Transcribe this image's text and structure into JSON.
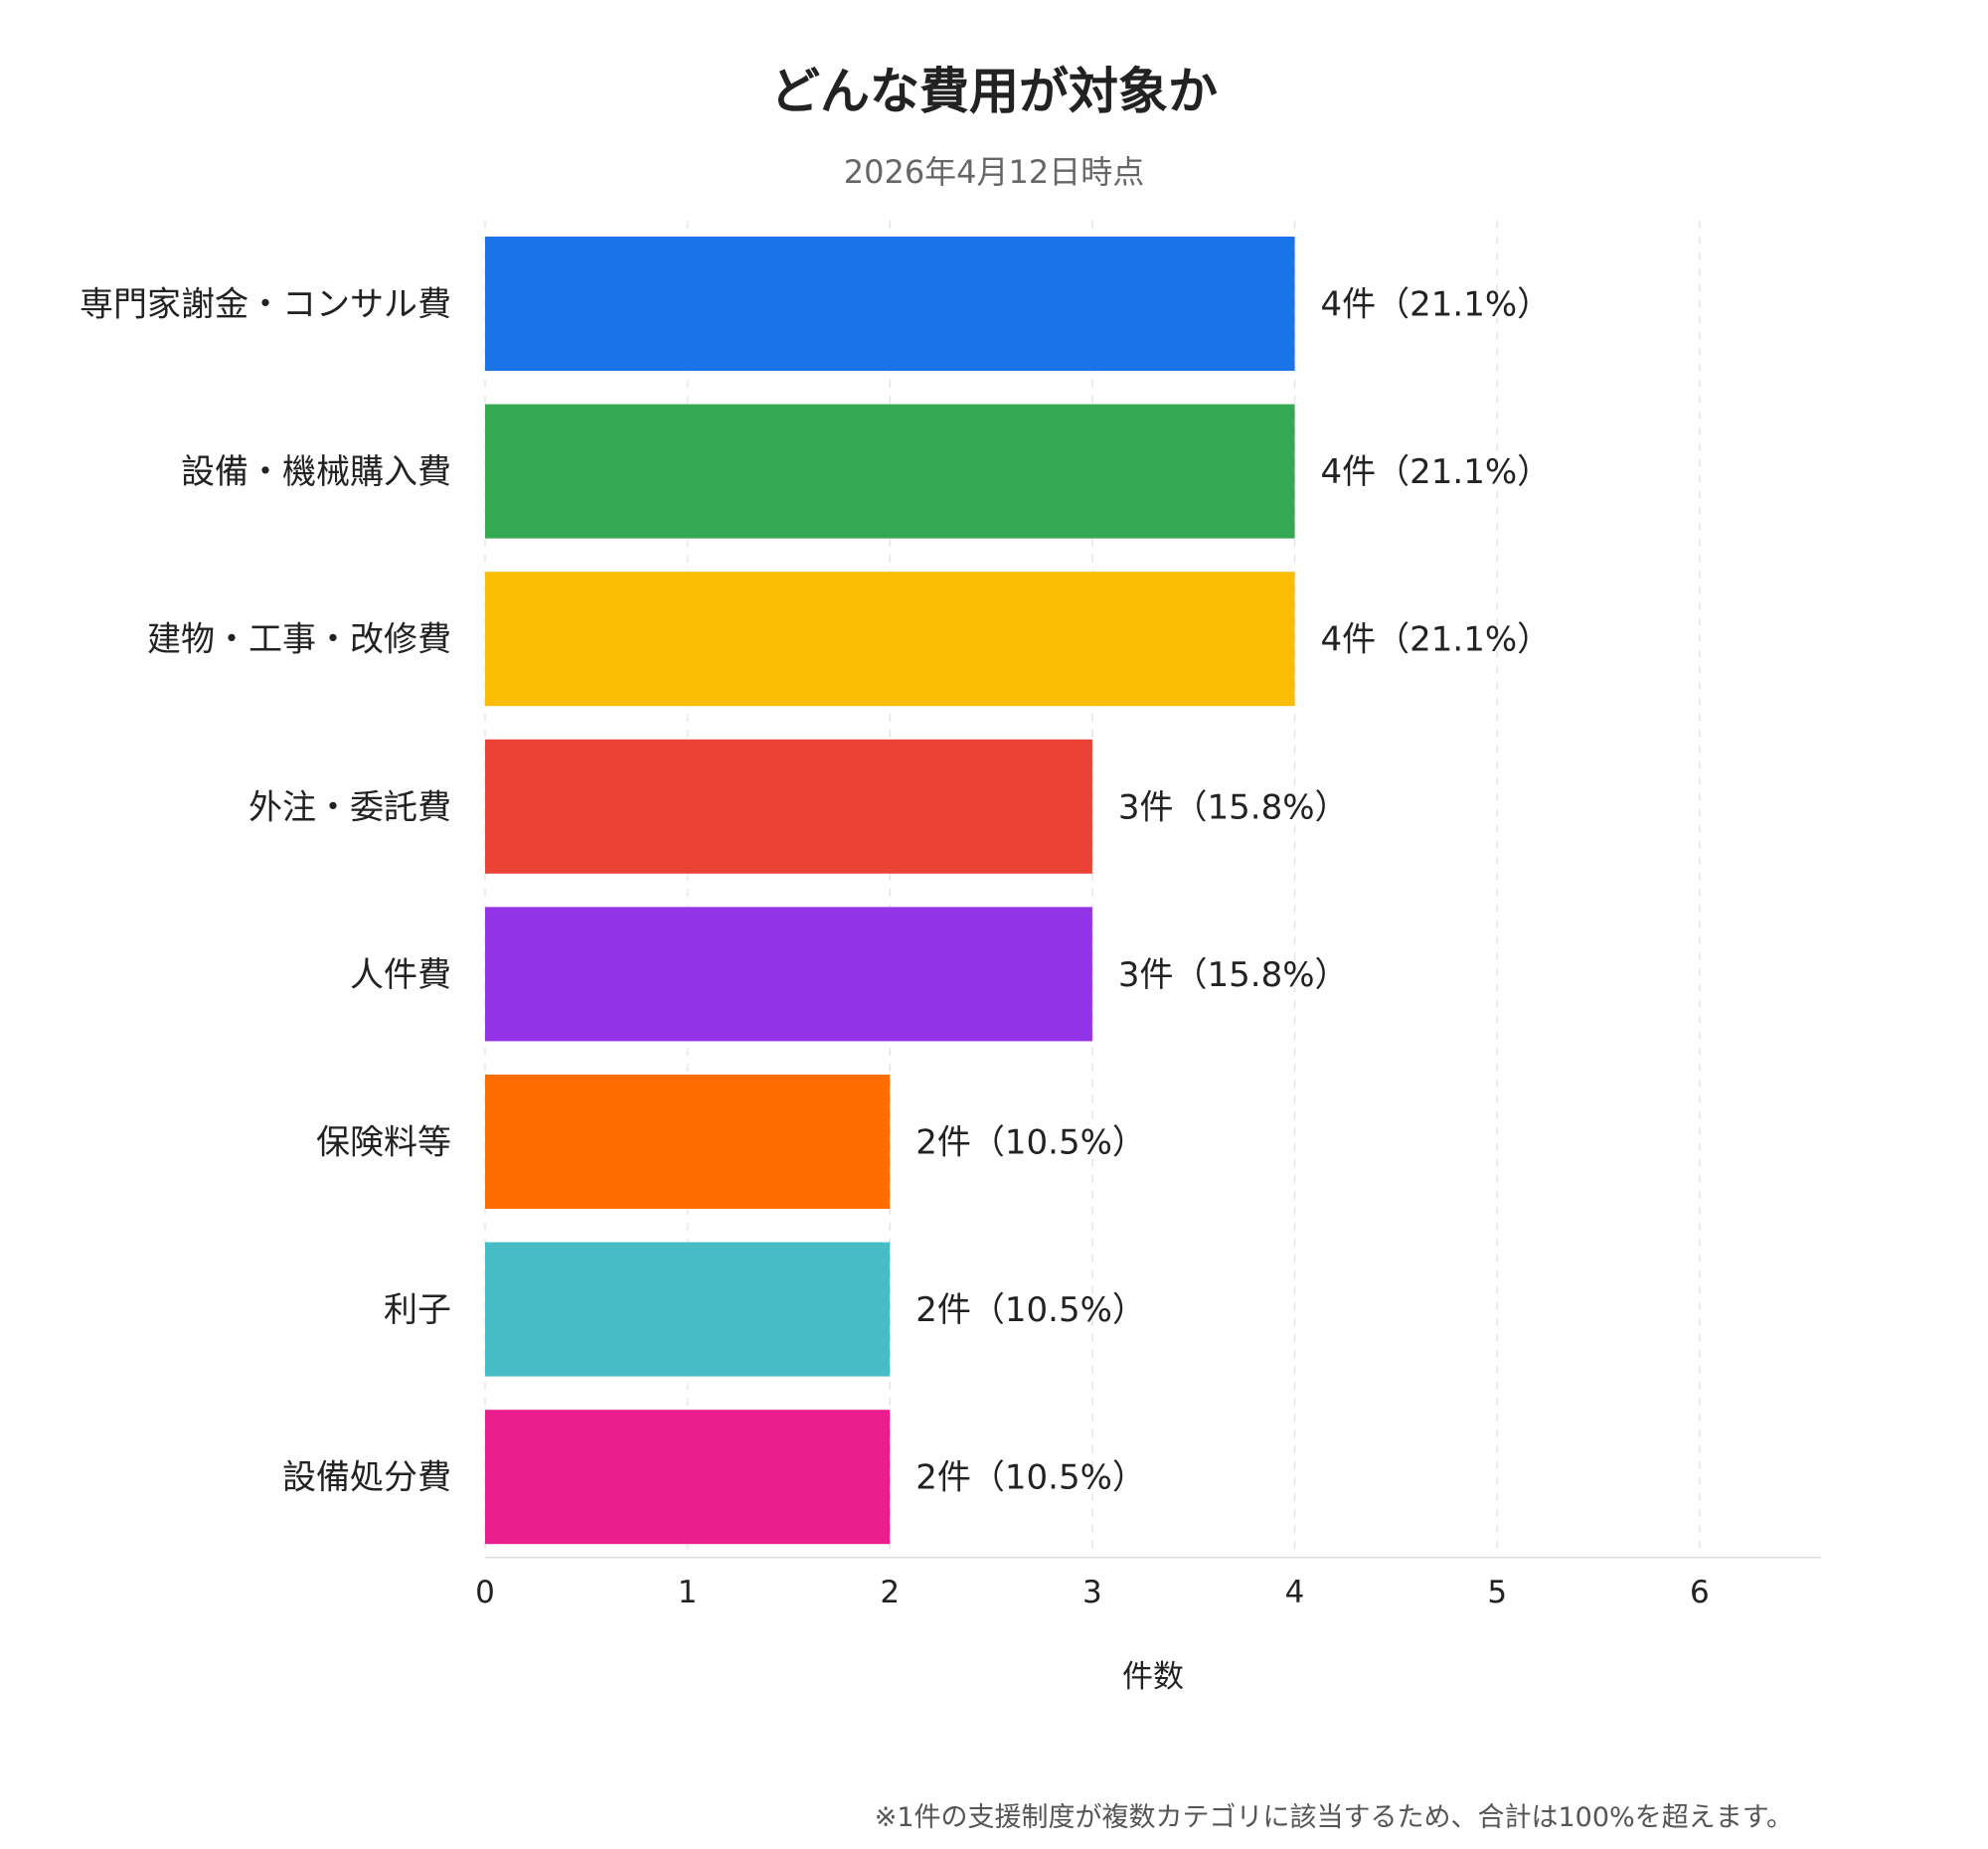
{
  "chart_data": {
    "type": "bar",
    "orientation": "horizontal",
    "title": "どんな費用が対象か",
    "subtitle": "2026年4月12日時点",
    "xlabel": "件数",
    "ylabel": "",
    "xlim": [
      0,
      6.6
    ],
    "xticks": [
      0,
      1,
      2,
      3,
      4,
      5,
      6
    ],
    "grid": "vertical-dashed",
    "categories": [
      "専門家謝金・コンサル費",
      "設備・機械購入費",
      "建物・工事・改修費",
      "外注・委託費",
      "人件費",
      "保険料等",
      "利子",
      "設備処分費"
    ],
    "values": [
      4,
      4,
      4,
      3,
      3,
      2,
      2,
      2
    ],
    "data_labels": [
      "4件（21.1%）",
      "4件（21.1%）",
      "4件（21.1%）",
      "3件（15.8%）",
      "3件（15.8%）",
      "2件（10.5%）",
      "2件（10.5%）",
      "2件（10.5%）"
    ],
    "colors": [
      "#1a73e8",
      "#34a853",
      "#fbbc04",
      "#ea4335",
      "#9334e6",
      "#ff6d01",
      "#46bdc6",
      "#e91e8c"
    ],
    "note": "※1件の支援制度が複数カテゴリに該当するため、合計は100%を超えます。"
  }
}
